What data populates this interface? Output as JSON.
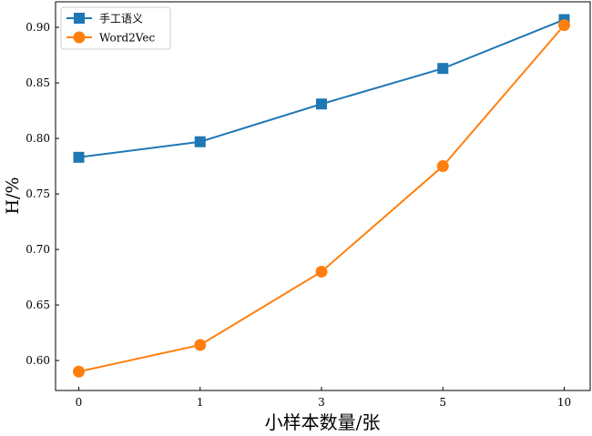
{
  "chart_data": {
    "type": "line",
    "categories": [
      "0",
      "1",
      "3",
      "5",
      "10"
    ],
    "series": [
      {
        "name": "手工语义",
        "marker": "square",
        "color": "#1f77b4",
        "values": [
          0.783,
          0.797,
          0.831,
          0.863,
          0.907
        ]
      },
      {
        "name": "Word2Vec",
        "marker": "circle",
        "color": "#ff7f0e",
        "values": [
          0.59,
          0.614,
          0.68,
          0.775,
          0.902
        ]
      }
    ],
    "xlabel": "小样本数量/张",
    "ylabel": "H/%",
    "ylim": [
      0.573,
      0.923
    ],
    "yticks": [
      0.6,
      0.65,
      0.7,
      0.75,
      0.8,
      0.85,
      0.9
    ],
    "ytick_labels": [
      "0.60",
      "0.65",
      "0.70",
      "0.75",
      "0.80",
      "0.85",
      "0.90"
    ],
    "grid": false,
    "legend_position": "top-left"
  }
}
